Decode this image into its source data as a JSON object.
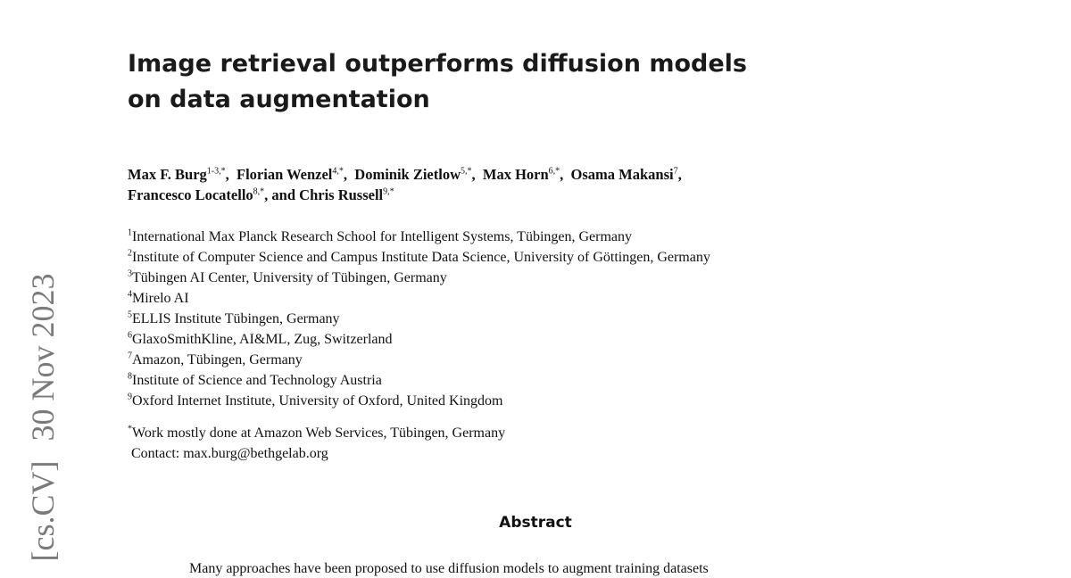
{
  "arxiv_stamp": {
    "category": "[cs.CV]",
    "date": "30 Nov 2023"
  },
  "title": {
    "line1": "Image retrieval outperforms diffusion models",
    "line2": "on data augmentation"
  },
  "authors": [
    {
      "name": "Max F. Burg",
      "sup": "1-3,*"
    },
    {
      "name": "Florian Wenzel",
      "sup": "4,*"
    },
    {
      "name": "Dominik Zietlow",
      "sup": "5,*"
    },
    {
      "name": "Max Horn",
      "sup": "6,*"
    },
    {
      "name": "Osama Makansi",
      "sup": "7"
    },
    {
      "name": "Francesco Locatello",
      "sup": "8,*"
    },
    {
      "name": "Chris Russell",
      "sup": "9,*"
    }
  ],
  "authors_conj": "and",
  "affiliations": [
    {
      "sup": "1",
      "text": "International Max Planck Research School for Intelligent Systems, Tübingen, Germany"
    },
    {
      "sup": "2",
      "text": "Institute of Computer Science and Campus Institute Data Science, University of Göttingen, Germany"
    },
    {
      "sup": "3",
      "text": "Tübingen AI Center, University of Tübingen, Germany"
    },
    {
      "sup": "4",
      "text": "Mirelo AI"
    },
    {
      "sup": "5",
      "text": "ELLIS Institute Tübingen, Germany"
    },
    {
      "sup": "6",
      "text": "GlaxoSmithKline, AI&ML, Zug, Switzerland"
    },
    {
      "sup": "7",
      "text": "Amazon, Tübingen, Germany"
    },
    {
      "sup": "8",
      "text": "Institute of Science and Technology Austria"
    },
    {
      "sup": "9",
      "text": "Oxford Internet Institute, University of Oxford, United Kingdom"
    }
  ],
  "note": {
    "sup": "*",
    "text": "Work mostly done at Amazon Web Services, Tübingen, Germany",
    "contact": "Contact: max.burg@bethgelab.org"
  },
  "abstract": {
    "heading": "Abstract",
    "first_line": "Many approaches have been proposed to use diffusion models to augment training datasets"
  }
}
